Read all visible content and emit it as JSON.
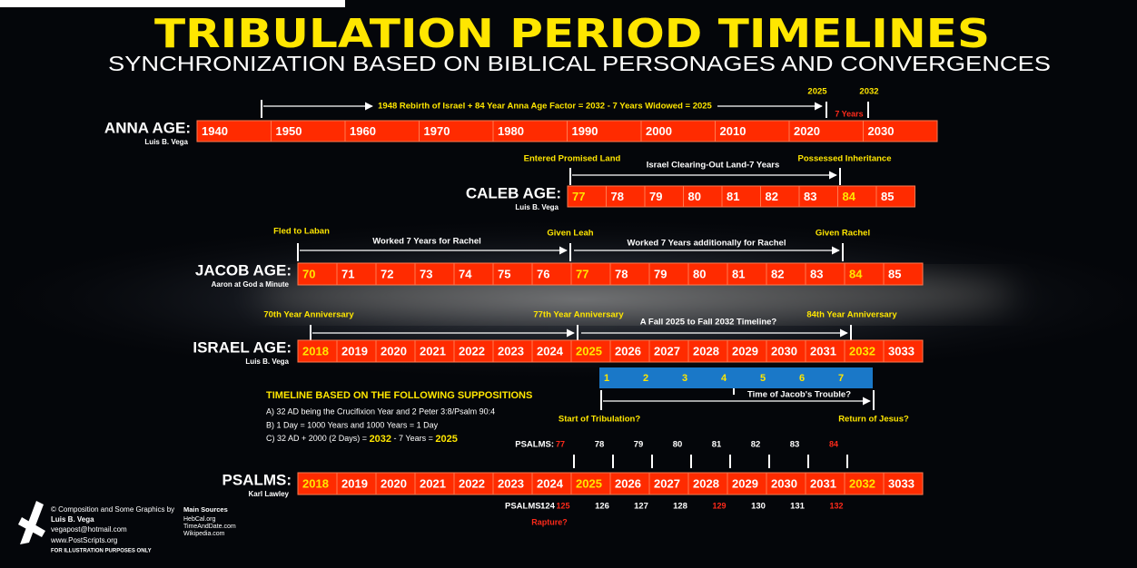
{
  "header": {
    "title": "TRIBULATION PERIOD TIMELINES",
    "subtitle": "SYNCHRONIZATION BASED ON BIBLICAL PERSONAGES AND CONVERGENCES"
  },
  "rows": [
    {
      "label": "ANNA AGE:",
      "sublabel": "Luis B. Vega",
      "cells": [
        1940,
        1950,
        1960,
        1970,
        1980,
        1990,
        2000,
        2010,
        2020,
        2030
      ],
      "highlight": []
    },
    {
      "label": "CALEB AGE:",
      "sublabel": "Luis B. Vega",
      "cells": [
        77,
        78,
        79,
        80,
        81,
        82,
        83,
        84,
        85
      ],
      "highlight": [
        0,
        7
      ]
    },
    {
      "label": "JACOB AGE:",
      "sublabel": "Aaron at God a Minute",
      "cells": [
        70,
        71,
        72,
        73,
        74,
        75,
        76,
        77,
        78,
        79,
        80,
        81,
        82,
        83,
        84,
        85
      ],
      "highlight": [
        0,
        7,
        14
      ]
    },
    {
      "label": "ISRAEL AGE:",
      "sublabel": "Luis B. Vega",
      "cells": [
        2018,
        2019,
        2020,
        2021,
        2022,
        2023,
        2024,
        2025,
        2026,
        2027,
        2028,
        2029,
        2030,
        2031,
        2032,
        3033
      ],
      "highlight": [
        0,
        7,
        14
      ]
    },
    {
      "label": "PSALMS:",
      "sublabel": "Karl Lawley",
      "cells": [
        2018,
        2019,
        2020,
        2021,
        2022,
        2023,
        2024,
        2025,
        2026,
        2027,
        2028,
        2029,
        2030,
        2031,
        2032,
        3033
      ],
      "highlight": [
        0,
        7,
        14
      ]
    }
  ],
  "anna_notes": {
    "equation": "1948 Rebirth of Israel + 84 Year Anna Age Factor = 2032 -  7 Years Widowed = 2025",
    "year_start": 2025,
    "year_end": 2032,
    "span": "7 Years"
  },
  "caleb_notes": {
    "start": "Entered Promised Land",
    "span": "Israel Clearing-Out Land-7 Years",
    "end": "Possessed Inheritance"
  },
  "jacob_notes": {
    "start": "Fled to Laban",
    "span1": "Worked 7 Years for Rachel",
    "middle": "Given Leah",
    "span2": "Worked 7 Years additionally  for Rachel",
    "end": "Given Rachel"
  },
  "israel_notes": {
    "start": "70th Year Anniversary",
    "middle": "77th Year Anniversary",
    "span": "A Fall 2025 to Fall 2032 Timeline?",
    "end": "84th Year Anniversary"
  },
  "tribulation": {
    "years": [
      1,
      2,
      3,
      4,
      5,
      6,
      7
    ],
    "span": "Time of Jacob's Trouble?",
    "start": "Start of Tribulation?",
    "end": "Return of Jesus?"
  },
  "suppositions": {
    "heading": "TIMELINE BASED ON THE FOLLOWING SUPPOSITIONS",
    "items": [
      "A)  32 AD being the Crucifixion Year and 2 Peter 3:8/Psalm 90:4",
      "B) 1 Day = 1000 Years and 1000 Years = 1 Day"
    ],
    "c": {
      "prefix": "C)  32 AD + 2000 (2 Days) = ",
      "year_end": 2032,
      "middle": " - 7 Years = ",
      "year_start": 2025
    }
  },
  "psalms": {
    "above": {
      "label": "PSALMS:",
      "numbers": [
        77,
        78,
        79,
        80,
        81,
        82,
        83,
        84
      ],
      "red": [
        0,
        7
      ]
    },
    "below": {
      "label": "PSALMS:",
      "numbers": [
        124,
        125,
        126,
        127,
        128,
        129,
        130,
        131,
        132
      ],
      "red": [
        1,
        5,
        8
      ]
    },
    "rapture": "Rapture?"
  },
  "credits": {
    "lines": [
      "© Composition and Some Graphics by",
      "Luis B. Vega",
      "vegapost@hotmail.com",
      "www.PostScripts.org",
      "FOR ILLUSTRATION PURPOSES ONLY"
    ]
  },
  "sources": {
    "heading": "Main Sources",
    "items": [
      "HebCal.org",
      "TimeAndDate.com",
      "Wikipedia.com"
    ]
  }
}
